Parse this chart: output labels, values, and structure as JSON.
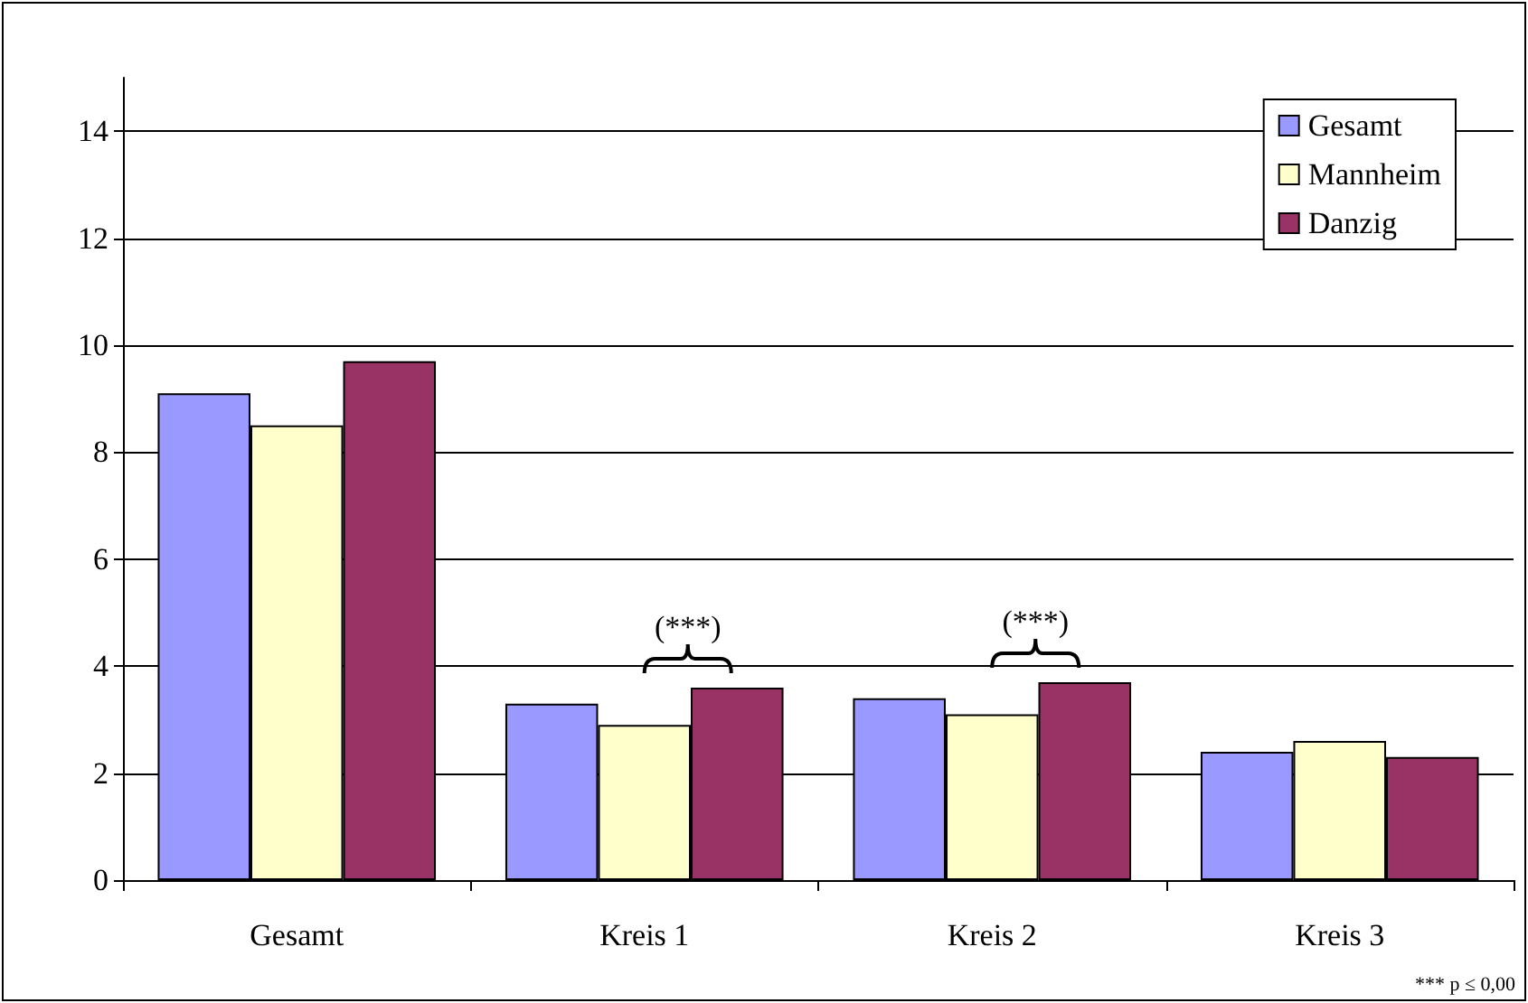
{
  "chart_data": {
    "type": "bar",
    "categories": [
      "Gesamt",
      "Kreis 1",
      "Kreis 2",
      "Kreis 3"
    ],
    "series": [
      {
        "name": "Gesamt",
        "color": "#9999ff",
        "values": [
          9.1,
          3.3,
          3.4,
          2.4
        ]
      },
      {
        "name": "Mannheim",
        "color": "#ffffcc",
        "values": [
          8.5,
          2.9,
          3.1,
          2.6
        ]
      },
      {
        "name": "Danzig",
        "color": "#993366",
        "values": [
          9.7,
          3.6,
          3.7,
          2.3
        ]
      }
    ],
    "ylim": [
      0,
      15
    ],
    "yticks": [
      0,
      2,
      4,
      6,
      8,
      10,
      12,
      14
    ],
    "grid": "y",
    "legend": "top right",
    "annotations": [
      "(***)",
      "(***)",
      "*** p ≤ 0,00"
    ]
  }
}
